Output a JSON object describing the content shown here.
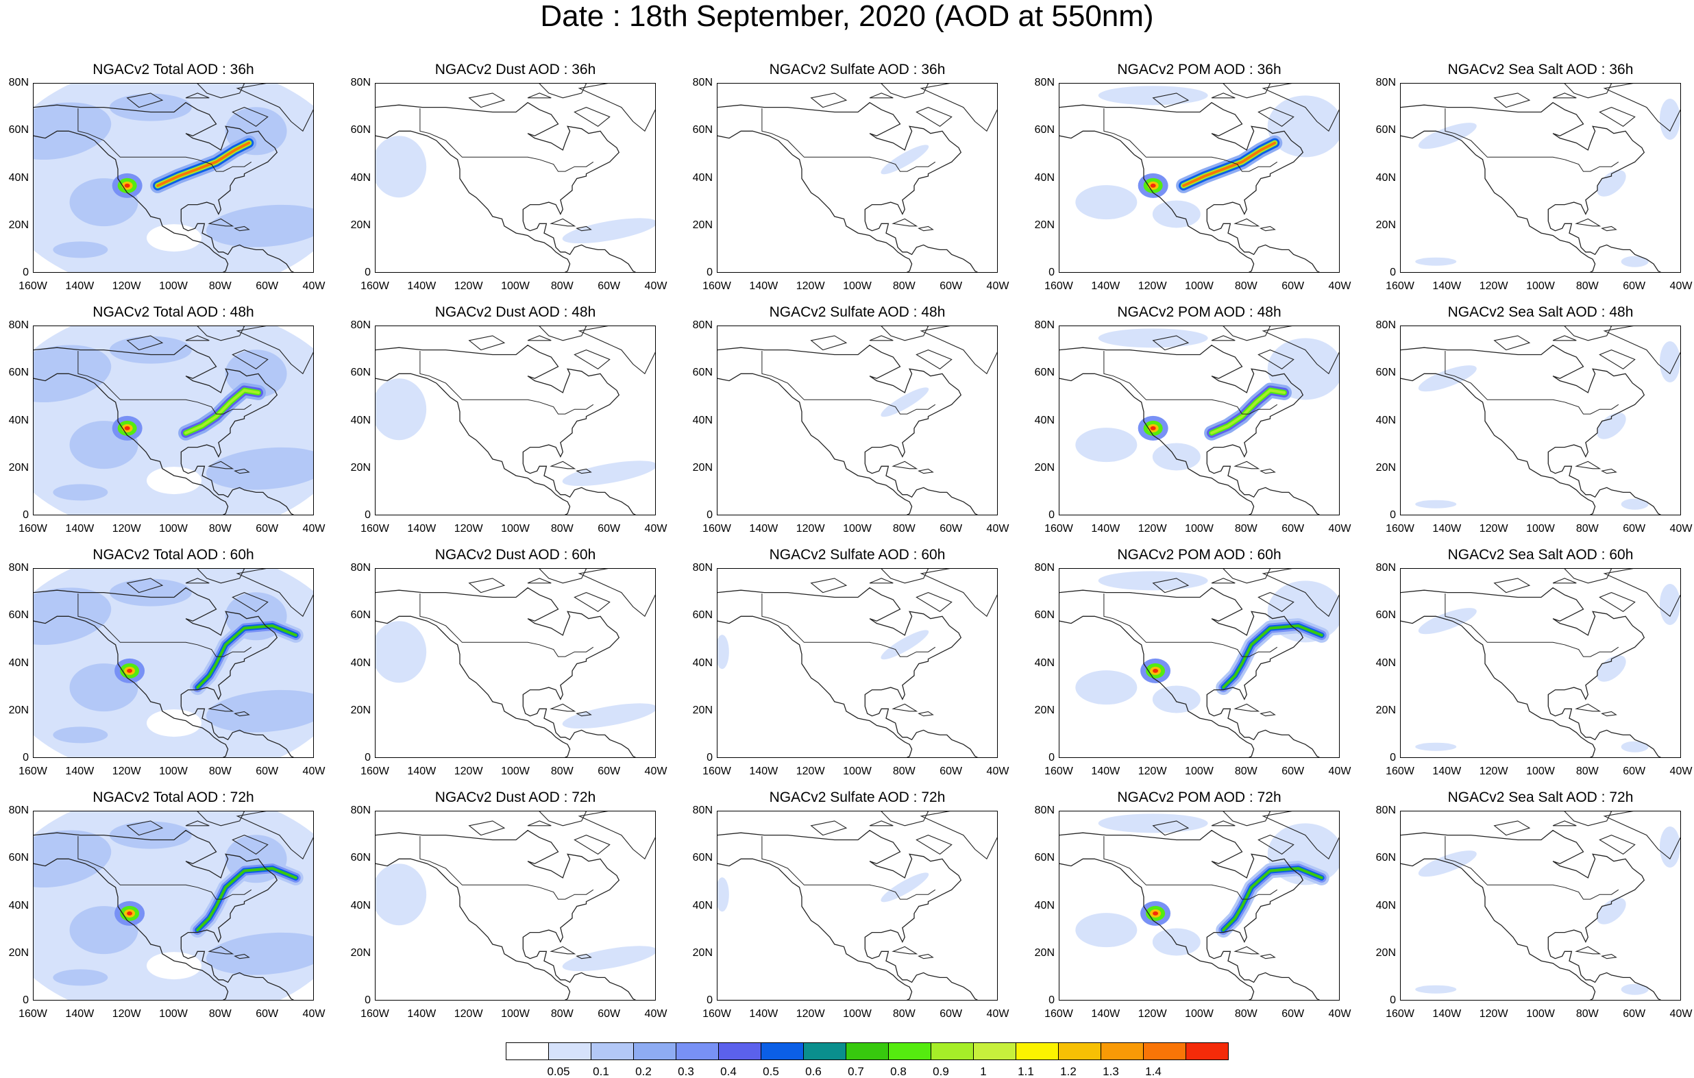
{
  "chart_data": {
    "type": "heatmap",
    "title": "Date : 18th September, 2020 (AOD at 550nm)",
    "x_ticks": [
      "160W",
      "140W",
      "120W",
      "100W",
      "80W",
      "60W",
      "40W"
    ],
    "y_ticks": [
      "80N",
      "60N",
      "40N",
      "20N",
      "0"
    ],
    "xlim": [
      -160,
      -40
    ],
    "ylim": [
      0,
      80
    ],
    "panels": [
      {
        "title": "NGACv2 Total AOD : 36h",
        "species": "Total",
        "forecast_hour": 36
      },
      {
        "title": "NGACv2 Dust AOD : 36h",
        "species": "Dust",
        "forecast_hour": 36
      },
      {
        "title": "NGACv2 Sulfate AOD : 36h",
        "species": "Sulfate",
        "forecast_hour": 36
      },
      {
        "title": "NGACv2 POM AOD : 36h",
        "species": "POM",
        "forecast_hour": 36
      },
      {
        "title": "NGACv2 Sea Salt AOD : 36h",
        "species": "SeaSalt",
        "forecast_hour": 36
      },
      {
        "title": "NGACv2 Total AOD : 48h",
        "species": "Total",
        "forecast_hour": 48
      },
      {
        "title": "NGACv2 Dust AOD : 48h",
        "species": "Dust",
        "forecast_hour": 48
      },
      {
        "title": "NGACv2 Sulfate AOD : 48h",
        "species": "Sulfate",
        "forecast_hour": 48
      },
      {
        "title": "NGACv2 POM AOD : 48h",
        "species": "POM",
        "forecast_hour": 48
      },
      {
        "title": "NGACv2 Sea Salt AOD : 48h",
        "species": "SeaSalt",
        "forecast_hour": 48
      },
      {
        "title": "NGACv2 Total AOD : 60h",
        "species": "Total",
        "forecast_hour": 60
      },
      {
        "title": "NGACv2 Dust AOD : 60h",
        "species": "Dust",
        "forecast_hour": 60
      },
      {
        "title": "NGACv2 Sulfate AOD : 60h",
        "species": "Sulfate",
        "forecast_hour": 60
      },
      {
        "title": "NGACv2 POM AOD : 60h",
        "species": "POM",
        "forecast_hour": 60
      },
      {
        "title": "NGACv2 Sea Salt AOD : 60h",
        "species": "SeaSalt",
        "forecast_hour": 60
      },
      {
        "title": "NGACv2 Total AOD : 72h",
        "species": "Total",
        "forecast_hour": 72
      },
      {
        "title": "NGACv2 Dust AOD : 72h",
        "species": "Dust",
        "forecast_hour": 72
      },
      {
        "title": "NGACv2 Sulfate AOD : 72h",
        "species": "Sulfate",
        "forecast_hour": 72
      },
      {
        "title": "NGACv2 POM AOD : 72h",
        "species": "POM",
        "forecast_hour": 72
      },
      {
        "title": "NGACv2 Sea Salt  AOD : 72h",
        "species": "SeaSalt",
        "forecast_hour": 72
      }
    ],
    "colorbar": {
      "levels": [
        "0.05",
        "0.1",
        "0.2",
        "0.3",
        "0.4",
        "0.5",
        "0.6",
        "0.7",
        "0.8",
        "0.9",
        "1",
        "1.1",
        "1.2",
        "1.3",
        "1.4"
      ],
      "colors": [
        "#ffffff",
        "#d6e2fb",
        "#b3c8f7",
        "#8eacf3",
        "#7891f5",
        "#5b61ec",
        "#0b5fe6",
        "#0a8f8d",
        "#37c90e",
        "#55eb0f",
        "#a6ee28",
        "#c7f03c",
        "#fbf300",
        "#f7c004",
        "#f99a06",
        "#f97507",
        "#f42b09"
      ]
    }
  }
}
